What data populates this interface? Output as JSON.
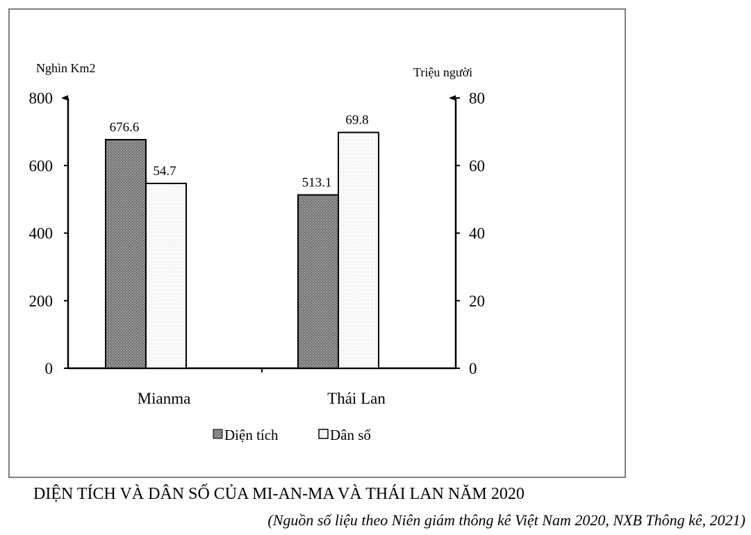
{
  "chart_data": {
    "type": "bar",
    "title": "DIỆN TÍCH VÀ DÂN SỐ CỦA MI-AN-MA VÀ THÁI LAN NĂM 2020",
    "source": "(Nguồn số liệu theo Niên giám thông kê Việt Nam 2020, NXB Thông kê, 2021)",
    "categories": [
      "Mianma",
      "Thái Lan"
    ],
    "left_axis": {
      "label": "Nghìn Km2",
      "ylim": [
        0,
        800
      ],
      "ticks": [
        "0",
        "200",
        "400",
        "600",
        "800"
      ]
    },
    "right_axis": {
      "label": "Triệu người",
      "ylim": [
        0,
        80
      ],
      "ticks": [
        "0",
        "20",
        "40",
        "60",
        "80"
      ]
    },
    "series": [
      {
        "name": "Diện tích",
        "axis": "left",
        "values": [
          676.6,
          513.1
        ],
        "labels": [
          "676.6",
          "513.1"
        ],
        "color": "#808080"
      },
      {
        "name": "Dân số",
        "axis": "right",
        "values": [
          54.7,
          69.8
        ],
        "labels": [
          "54.7",
          "69.8"
        ],
        "color": "#ffffff"
      }
    ],
    "legend": "bottom",
    "grid": false
  }
}
